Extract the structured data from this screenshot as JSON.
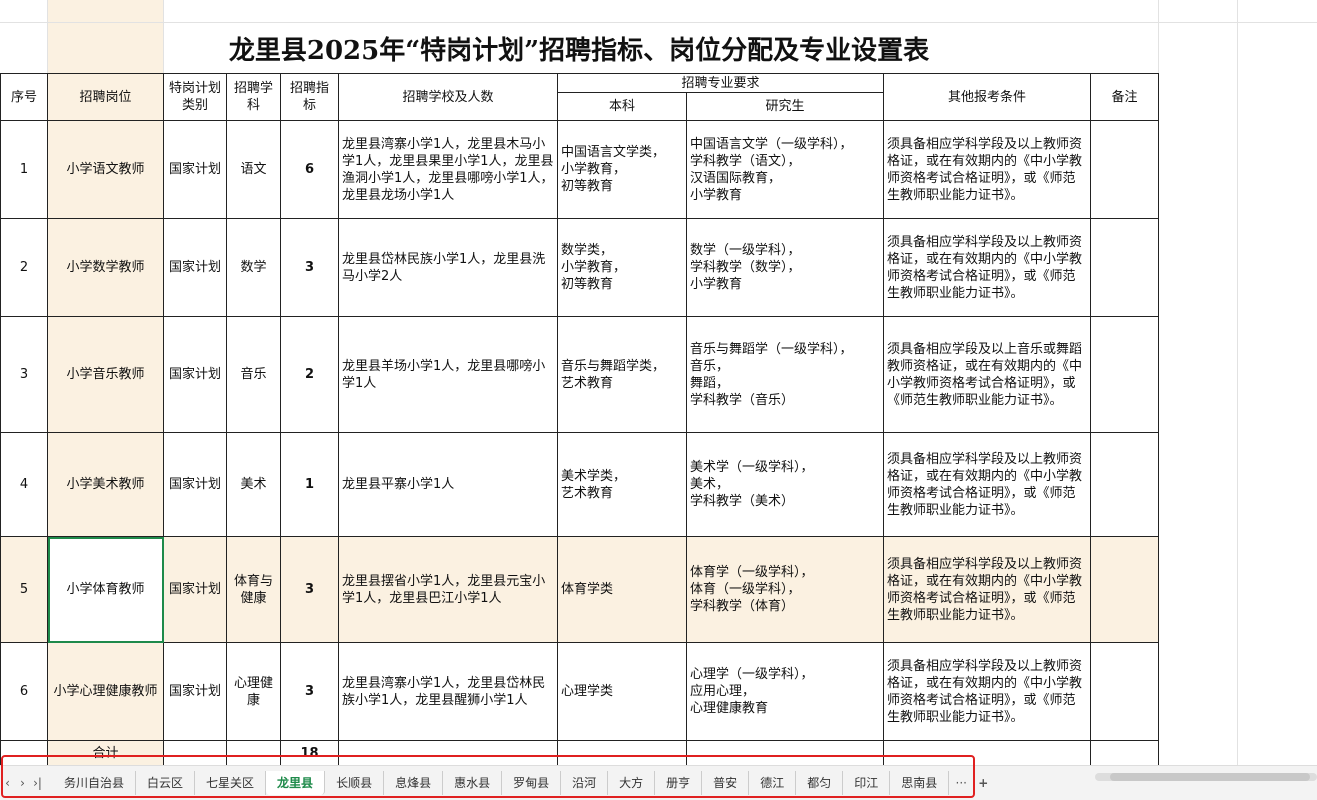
{
  "title": "龙里县2025年“特岗计划”招聘指标、岗位分配及专业设置表",
  "headers": {
    "seq": "序号",
    "position": "招聘岗位",
    "plan_type": "特岗计划类别",
    "subject": "招聘学科",
    "quota": "招聘指标",
    "schools": "招聘学校及人数",
    "major_req": "招聘专业要求",
    "undergrad": "本科",
    "postgrad": "研究生",
    "other": "其他报考条件",
    "remark": "备注"
  },
  "rows": [
    {
      "seq": "1",
      "position": "小学语文教师",
      "plan_type": "国家计划",
      "subject": "语文",
      "quota": "6",
      "schools": "龙里县湾寨小学1人，龙里县木马小学1人，龙里县果里小学1人，龙里县渔洞小学1人，龙里县哪嗙小学1人，龙里县龙场小学1人",
      "undergrad": "中国语言文学类，\n小学教育，\n初等教育",
      "postgrad": "中国语言文学（一级学科），\n学科教学（语文），\n汉语国际教育，\n小学教育",
      "other": "须具备相应学科学段及以上教师资格证，或在有效期内的《中小学教师资格考试合格证明》，或《师范生教师职业能力证书》。",
      "remark": ""
    },
    {
      "seq": "2",
      "position": "小学数学教师",
      "plan_type": "国家计划",
      "subject": "数学",
      "quota": "3",
      "schools": "龙里县岱林民族小学1人，龙里县洗马小学2人",
      "undergrad": "数学类，\n小学教育，\n初等教育",
      "postgrad": "数学（一级学科），\n学科教学（数学），\n小学教育",
      "other": "须具备相应学科学段及以上教师资格证，或在有效期内的《中小学教师资格考试合格证明》，或《师范生教师职业能力证书》。",
      "remark": ""
    },
    {
      "seq": "3",
      "position": "小学音乐教师",
      "plan_type": "国家计划",
      "subject": "音乐",
      "quota": "2",
      "schools": "龙里县羊场小学1人，龙里县哪嗙小学1人",
      "undergrad": "音乐与舞蹈学类，\n艺术教育",
      "postgrad": "音乐与舞蹈学（一级学科），\n音乐，\n舞蹈，\n学科教学（音乐）",
      "other": "须具备相应学段及以上音乐或舞蹈教师资格证，或在有效期内的《中小学教师资格考试合格证明》，或《师范生教师职业能力证书》。",
      "remark": ""
    },
    {
      "seq": "4",
      "position": "小学美术教师",
      "plan_type": "国家计划",
      "subject": "美术",
      "quota": "1",
      "schools": "龙里县平寨小学1人",
      "undergrad": "美术学类，\n艺术教育",
      "postgrad": "美术学（一级学科），\n美术，\n学科教学（美术）",
      "other": "须具备相应学科学段及以上教师资格证，或在有效期内的《中小学教师资格考试合格证明》，或《师范生教师职业能力证书》。",
      "remark": ""
    },
    {
      "seq": "5",
      "position": "小学体育教师",
      "plan_type": "国家计划",
      "subject": "体育与健康",
      "quota": "3",
      "schools": "龙里县摆省小学1人，龙里县元宝小学1人，龙里县巴江小学1人",
      "undergrad": "体育学类",
      "postgrad": "体育学（一级学科），\n体育（一级学科），\n学科教学（体育）",
      "other": "须具备相应学科学段及以上教师资格证，或在有效期内的《中小学教师资格考试合格证明》，或《师范生教师职业能力证书》。",
      "remark": ""
    },
    {
      "seq": "6",
      "position": "小学心理健康教师",
      "plan_type": "国家计划",
      "subject": "心理健康",
      "quota": "3",
      "schools": "龙里县湾寨小学1人，龙里县岱林民族小学1人，龙里县醒狮小学1人",
      "undergrad": "心理学类",
      "postgrad": "心理学（一级学科），\n应用心理，\n心理健康教育",
      "other": "须具备相应学科学段及以上教师资格证，或在有效期内的《中小学教师资格考试合格证明》，或《师范生教师职业能力证书》。",
      "remark": ""
    }
  ],
  "total": {
    "label": "合计",
    "quota": "18"
  },
  "tabs": [
    "务川自治县",
    "白云区",
    "七星关区",
    "龙里县",
    "长顺县",
    "息烽县",
    "惠水县",
    "罗甸县",
    "沿河",
    "大方",
    "册亨",
    "普安",
    "德江",
    "都匀",
    "印江",
    "思南县"
  ],
  "active_tab": "龙里县",
  "tab_more": "···",
  "tab_add": "+",
  "colors": {
    "accent": "#1e8a4a",
    "highlight": "#fbf1e1",
    "annotation": "#e02020"
  }
}
